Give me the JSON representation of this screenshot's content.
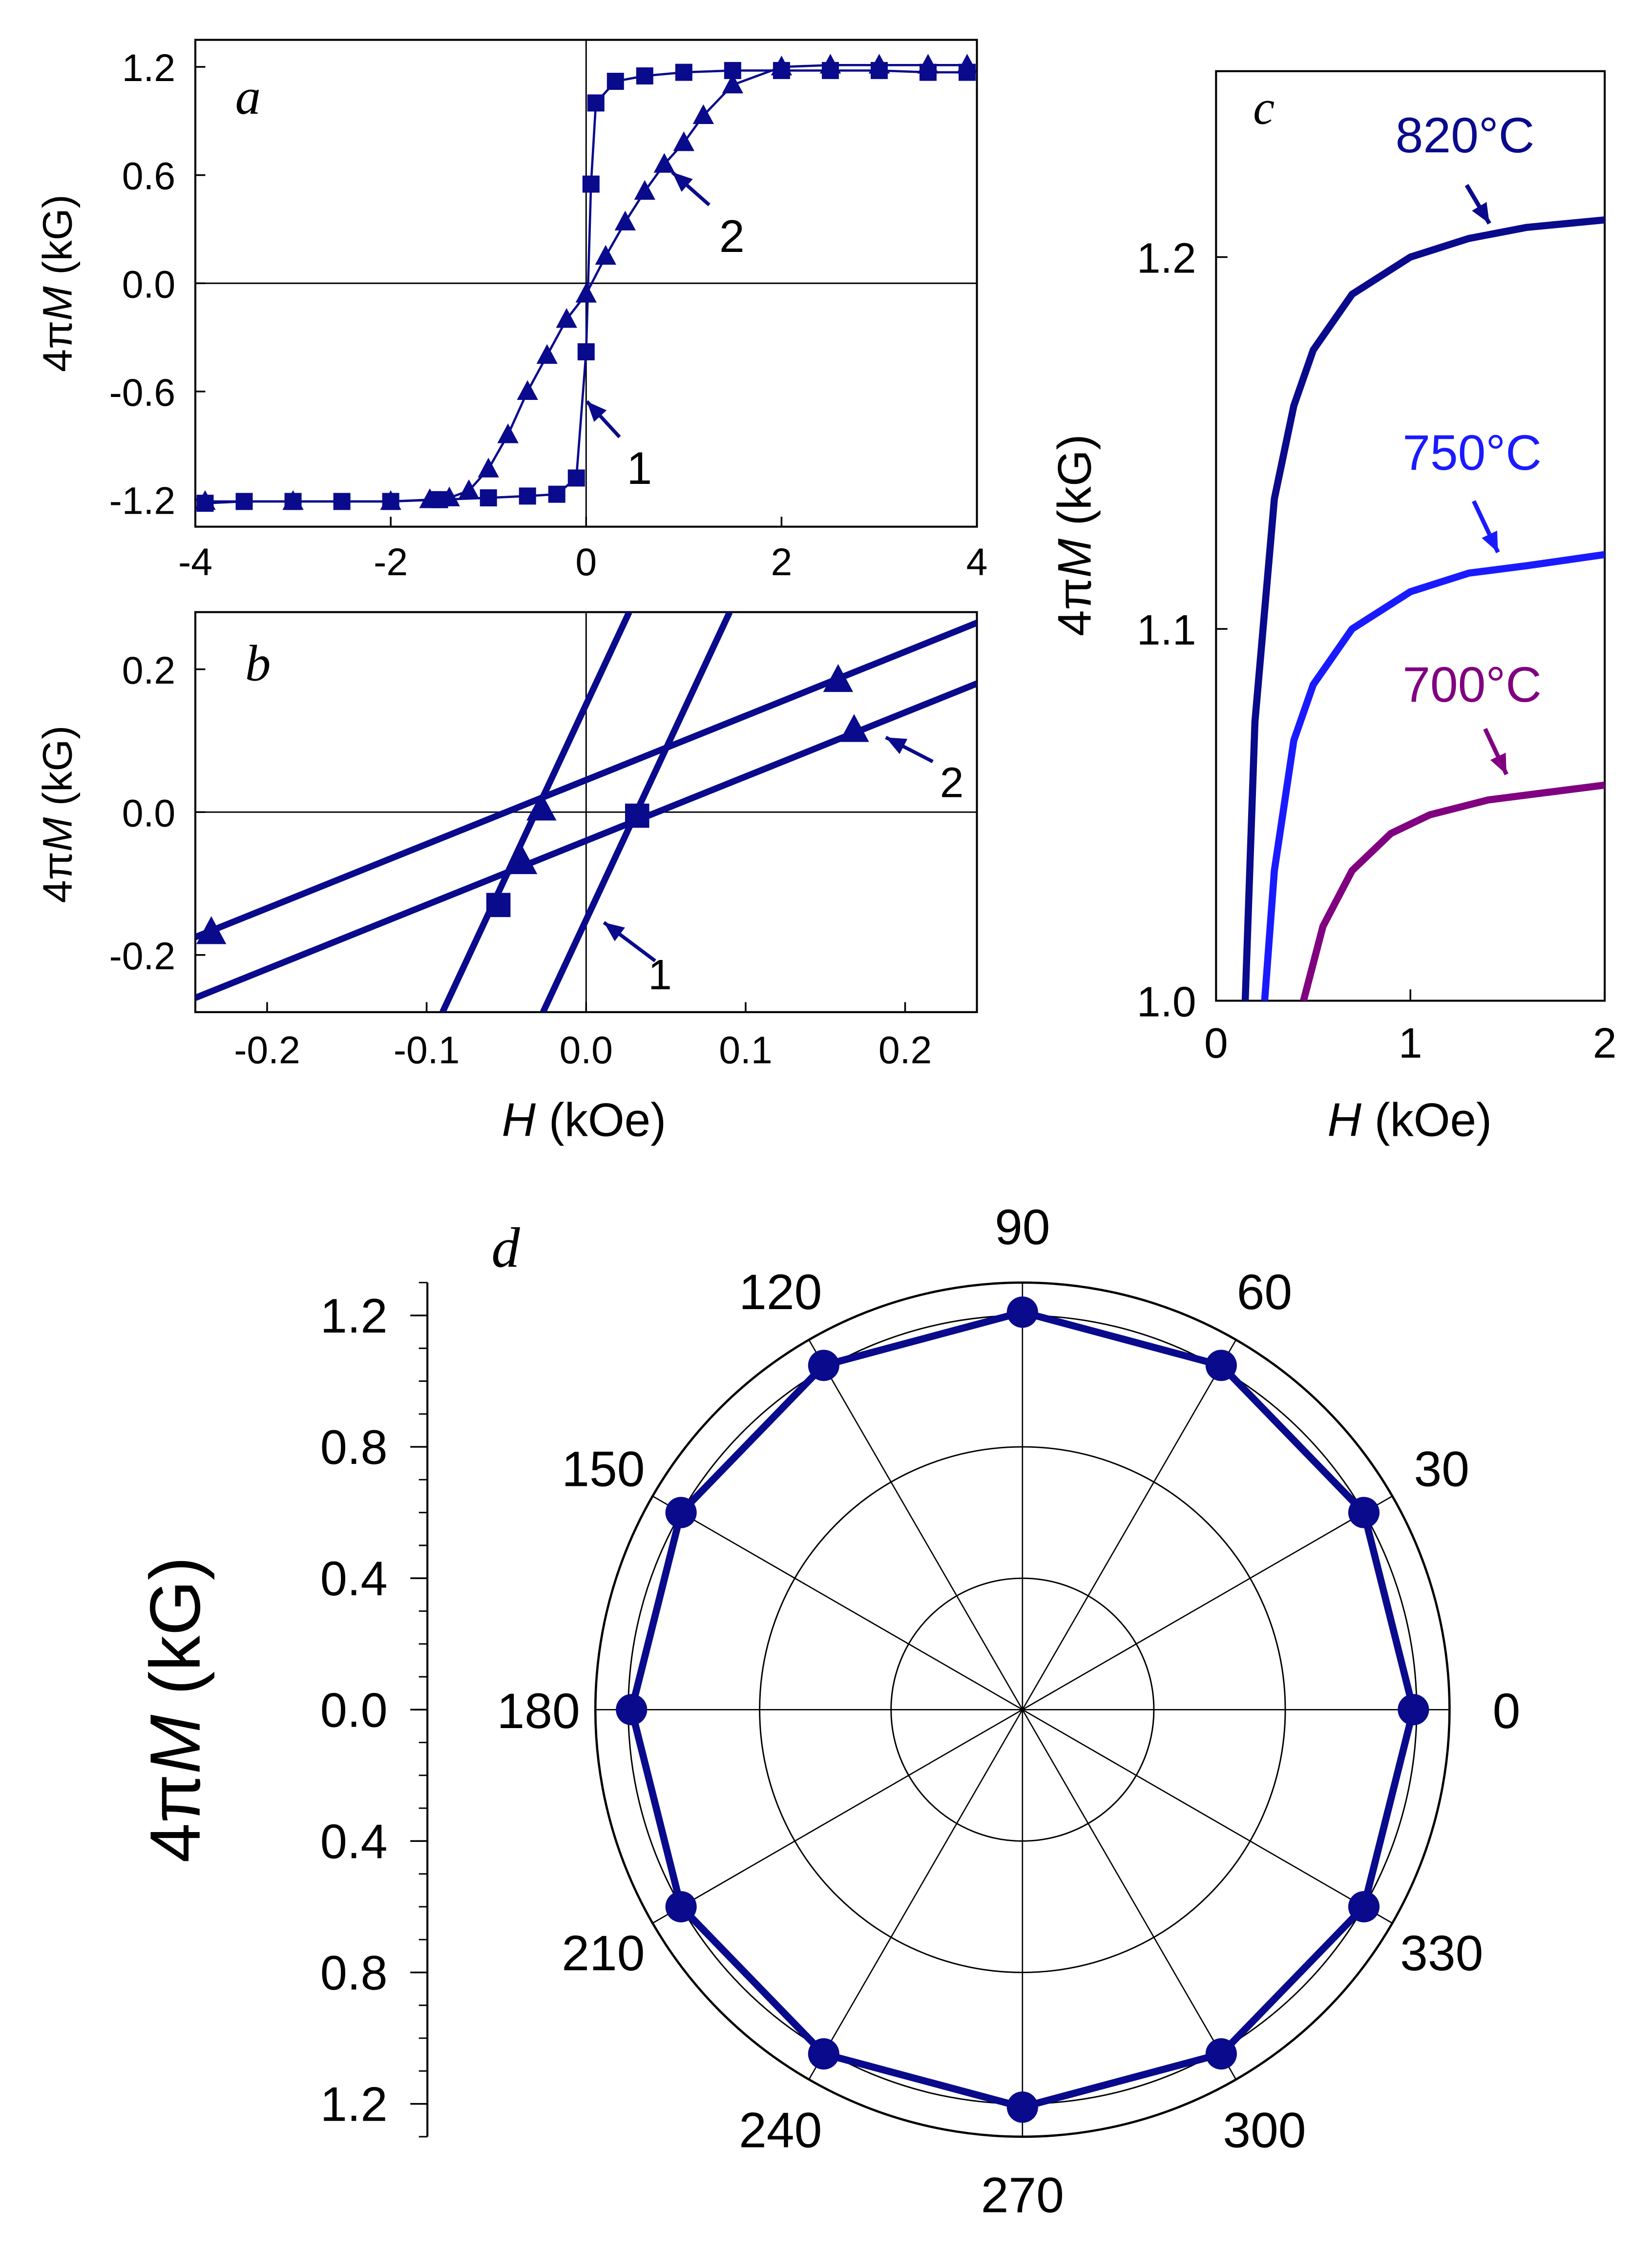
{
  "colors": {
    "navy": "#0a0a8c",
    "blue": "#1a1aff",
    "purple": "#800080",
    "axis": "#000000",
    "grid": "#000000"
  },
  "chart_data": [
    {
      "id": "a",
      "panel_label": "a",
      "type": "line",
      "xlim": [
        -4,
        4
      ],
      "ylim": [
        -1.35,
        1.35
      ],
      "xticks": [
        "-4",
        "-2",
        "0",
        "2",
        "4"
      ],
      "yticks": [
        "-1.2",
        "-0.6",
        "0.0",
        "0.6",
        "1.2"
      ],
      "ytick_values": [
        -1.2,
        -0.6,
        0.0,
        0.6,
        1.2
      ],
      "xtick_values": [
        -4,
        -2,
        0,
        2,
        4
      ],
      "ylabel_prefix": "4π",
      "ylabel_var": "M",
      "ylabel_unit": "(kG)",
      "annotations": [
        "1",
        "2"
      ],
      "series": [
        {
          "name": "1",
          "marker": "square",
          "x": [
            -3.9,
            -3.5,
            -3.0,
            -2.5,
            -2.0,
            -1.5,
            -1.0,
            -0.6,
            -0.3,
            -0.1,
            0.0,
            0.05,
            0.1,
            0.3,
            0.6,
            1.0,
            1.5,
            2.0,
            2.5,
            3.0,
            3.5,
            3.9
          ],
          "y": [
            -1.22,
            -1.21,
            -1.21,
            -1.21,
            -1.21,
            -1.2,
            -1.19,
            -1.18,
            -1.17,
            -1.08,
            -0.38,
            0.55,
            1.0,
            1.12,
            1.15,
            1.17,
            1.18,
            1.18,
            1.18,
            1.18,
            1.17,
            1.17
          ]
        },
        {
          "name": "2",
          "marker": "triangle",
          "x": [
            -3.9,
            -3.0,
            -2.0,
            -1.6,
            -1.4,
            -1.2,
            -1.0,
            -0.8,
            -0.6,
            -0.4,
            -0.2,
            0.0,
            0.2,
            0.4,
            0.6,
            0.8,
            1.0,
            1.2,
            1.5,
            2.0,
            2.5,
            3.0,
            3.5,
            3.9
          ],
          "y": [
            -1.21,
            -1.21,
            -1.21,
            -1.2,
            -1.19,
            -1.15,
            -1.03,
            -0.84,
            -0.6,
            -0.4,
            -0.2,
            -0.06,
            0.15,
            0.34,
            0.51,
            0.66,
            0.78,
            0.93,
            1.1,
            1.2,
            1.21,
            1.21,
            1.21,
            1.21
          ]
        }
      ]
    },
    {
      "id": "b",
      "panel_label": "b",
      "type": "line",
      "xlim": [
        -0.245,
        0.245
      ],
      "ylim": [
        -0.28,
        0.28
      ],
      "xticks": [
        "-0.2",
        "-0.1",
        "0.0",
        "0.1",
        "0.2"
      ],
      "xtick_values": [
        -0.2,
        -0.1,
        0.0,
        0.1,
        0.2
      ],
      "yticks": [
        "-0.2",
        "0.0",
        "0.2"
      ],
      "ytick_values": [
        -0.2,
        0.0,
        0.2
      ],
      "ylabel_prefix": "4π",
      "ylabel_var": "M",
      "ylabel_unit": "(kG)",
      "xlabel_var": "H",
      "xlabel_unit": "(kOe)",
      "annotations": [
        "1",
        "2"
      ],
      "lines": [
        {
          "name": "1",
          "points": [
            [
              -0.09,
              -0.28
            ],
            [
              0.027,
              0.28
            ]
          ]
        },
        {
          "name": "1",
          "points": [
            [
              -0.027,
              -0.28
            ],
            [
              0.09,
              0.28
            ]
          ]
        },
        {
          "name": "2",
          "points": [
            [
              -0.245,
              -0.175
            ],
            [
              0.245,
              0.265
            ]
          ]
        },
        {
          "name": "2",
          "points": [
            [
              -0.245,
              -0.26
            ],
            [
              0.245,
              0.18
            ]
          ]
        }
      ],
      "markers": [
        {
          "shape": "triangle",
          "x": -0.235,
          "y": -0.168
        },
        {
          "shape": "triangle",
          "x": 0.158,
          "y": 0.185
        },
        {
          "shape": "triangle",
          "x": -0.04,
          "y": -0.07
        },
        {
          "shape": "triangle",
          "x": -0.028,
          "y": 0.005
        },
        {
          "shape": "triangle",
          "x": 0.168,
          "y": 0.115
        },
        {
          "shape": "square",
          "x": -0.055,
          "y": -0.13
        },
        {
          "shape": "square",
          "x": 0.032,
          "y": -0.005
        }
      ]
    },
    {
      "id": "c",
      "panel_label": "c",
      "type": "line",
      "xlim": [
        0,
        2
      ],
      "ylim": [
        1.0,
        1.25
      ],
      "xticks": [
        "0",
        "1",
        "2"
      ],
      "xtick_values": [
        0,
        1,
        2
      ],
      "yticks": [
        "1.0",
        "1.1",
        "1.2"
      ],
      "ytick_values": [
        1.0,
        1.1,
        1.2
      ],
      "ylabel_prefix": "4π",
      "ylabel_var": "M",
      "ylabel_unit": "(kG)",
      "xlabel_var": "H",
      "xlabel_unit": "(kOe)",
      "series": [
        {
          "name": "820°C",
          "color": "#0a0a8c",
          "x": [
            0.15,
            0.2,
            0.3,
            0.4,
            0.5,
            0.7,
            1.0,
            1.3,
            1.6,
            2.0
          ],
          "y": [
            1.0,
            1.075,
            1.135,
            1.16,
            1.175,
            1.19,
            1.2,
            1.205,
            1.208,
            1.21
          ]
        },
        {
          "name": "750°C",
          "color": "#1a1aff",
          "x": [
            0.25,
            0.3,
            0.4,
            0.5,
            0.7,
            1.0,
            1.3,
            1.6,
            2.0
          ],
          "y": [
            1.0,
            1.035,
            1.07,
            1.085,
            1.1,
            1.11,
            1.115,
            1.117,
            1.12
          ]
        },
        {
          "name": "700°C",
          "color": "#800080",
          "x": [
            0.45,
            0.55,
            0.7,
            0.9,
            1.1,
            1.4,
            1.7,
            2.0
          ],
          "y": [
            1.0,
            1.02,
            1.035,
            1.045,
            1.05,
            1.054,
            1.056,
            1.058
          ]
        }
      ]
    },
    {
      "id": "d",
      "panel_label": "d",
      "type": "polar",
      "rmax": 1.3,
      "radial_ticks": [
        "1.2",
        "0.8",
        "0.4",
        "0.0",
        "0.4",
        "0.8",
        "1.2"
      ],
      "radial_tick_values": [
        1.2,
        0.8,
        0.4,
        0.0,
        -0.4,
        -0.8,
        -1.2
      ],
      "rings": [
        0.4,
        0.8,
        1.2,
        1.3
      ],
      "angle_labels": [
        "0",
        "30",
        "60",
        "90",
        "120",
        "150",
        "180",
        "210",
        "240",
        "270",
        "300",
        "330"
      ],
      "angles": [
        0,
        30,
        60,
        90,
        120,
        150,
        180,
        210,
        240,
        270,
        300,
        330
      ],
      "values": [
        1.19,
        1.2,
        1.21,
        1.21,
        1.21,
        1.2,
        1.19,
        1.2,
        1.21,
        1.21,
        1.21,
        1.2
      ],
      "ylabel_prefix": "4π",
      "ylabel_var": "M",
      "ylabel_unit": "(kG)"
    }
  ]
}
